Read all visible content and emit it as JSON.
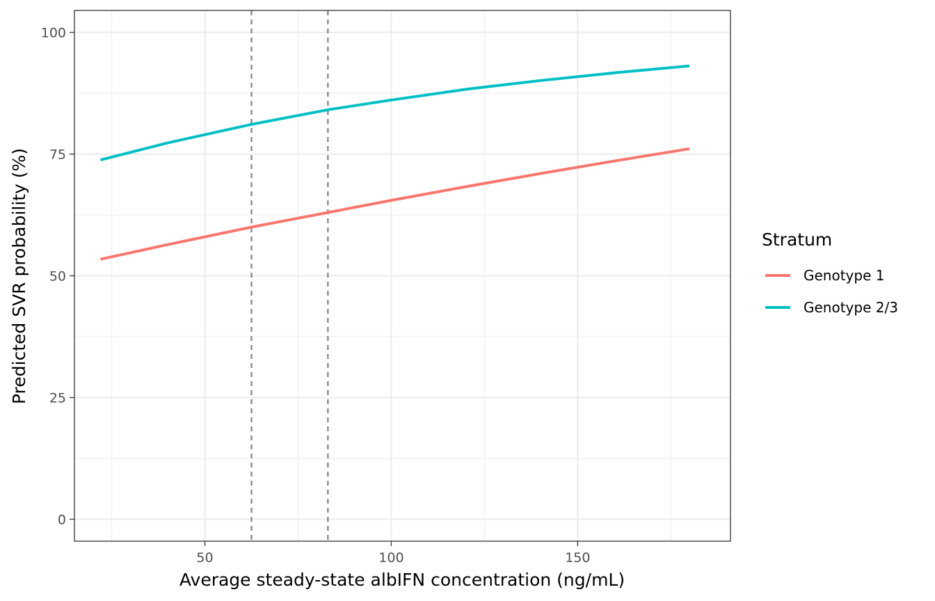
{
  "chart_data": {
    "type": "line",
    "xlabel": "Average steady-state albIFN concentration (ng/mL)",
    "ylabel": "Predicted SVR probability (%)",
    "xlim": [
      15,
      191
    ],
    "ylim": [
      -4.5,
      104.5
    ],
    "x_ticks": [
      50,
      100,
      150
    ],
    "y_ticks": [
      0,
      25,
      50,
      75,
      100
    ],
    "grid": true,
    "legend": {
      "title": "Stratum",
      "position": "right"
    },
    "reference_lines_x": [
      62.5,
      83
    ],
    "series": [
      {
        "name": "Genotype 1",
        "color": "#F8766D",
        "x": [
          22,
          40,
          62.5,
          83,
          100,
          120,
          140,
          160,
          180
        ],
        "y": [
          53.4,
          56.4,
          60.0,
          63.0,
          65.5,
          68.3,
          71.0,
          73.6,
          76.1
        ]
      },
      {
        "name": "Genotype 2/3",
        "color": "#00BFC4",
        "x": [
          22,
          40,
          62.5,
          83,
          100,
          120,
          140,
          160,
          180
        ],
        "y": [
          73.8,
          77.3,
          81.1,
          84.1,
          86.1,
          88.3,
          90.1,
          91.7,
          93.1
        ]
      }
    ]
  }
}
